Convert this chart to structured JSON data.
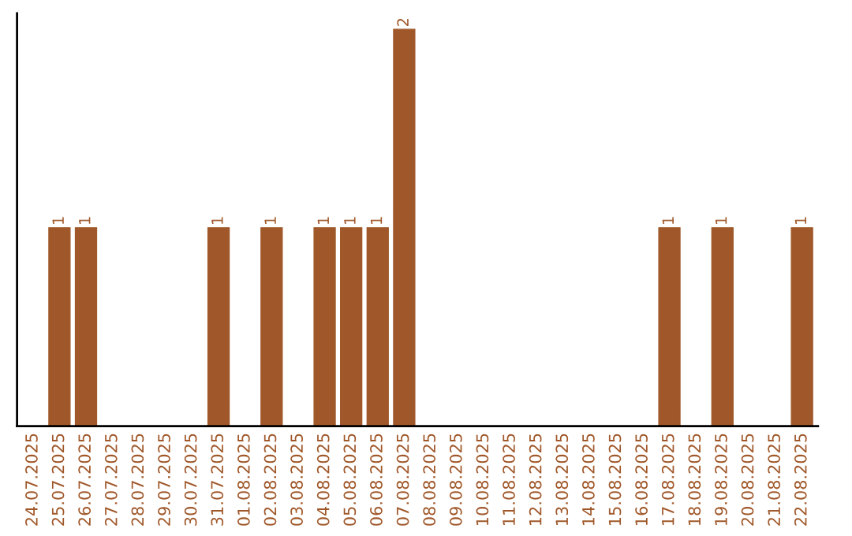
{
  "chart_data": {
    "type": "bar",
    "categories": [
      "24.07.2025",
      "25.07.2025",
      "26.07.2025",
      "27.07.2025",
      "28.07.2025",
      "29.07.2025",
      "30.07.2025",
      "31.07.2025",
      "01.08.2025",
      "02.08.2025",
      "03.08.2025",
      "04.08.2025",
      "05.08.2025",
      "06.08.2025",
      "07.08.2025",
      "08.08.2025",
      "09.08.2025",
      "10.08.2025",
      "11.08.2025",
      "12.08.2025",
      "13.08.2025",
      "14.08.2025",
      "15.08.2025",
      "16.08.2025",
      "17.08.2025",
      "18.08.2025",
      "19.08.2025",
      "20.08.2025",
      "21.08.2025",
      "22.08.2025"
    ],
    "values": [
      0,
      1,
      1,
      0,
      0,
      0,
      0,
      1,
      0,
      1,
      0,
      1,
      1,
      1,
      2,
      0,
      0,
      0,
      0,
      0,
      0,
      0,
      0,
      0,
      1,
      0,
      1,
      0,
      0,
      1
    ],
    "value_labels": [
      null,
      "1",
      "1",
      null,
      null,
      null,
      null,
      "1",
      null,
      "1",
      null,
      "1",
      "1",
      "1",
      "2",
      null,
      null,
      null,
      null,
      null,
      null,
      null,
      null,
      null,
      "1",
      null,
      "1",
      null,
      null,
      "1"
    ],
    "color": "#a0582a",
    "grid": false,
    "legend": false
  }
}
